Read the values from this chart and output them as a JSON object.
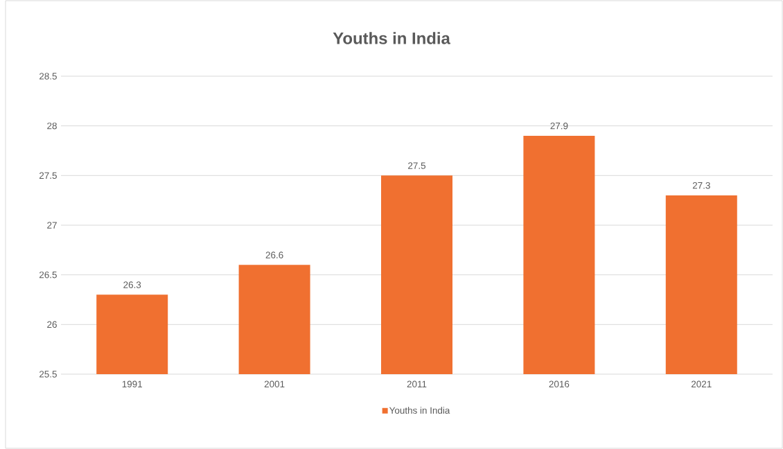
{
  "chart_data": {
    "type": "bar",
    "title": "Youths in India",
    "categories": [
      "1991",
      "2001",
      "2011",
      "2016",
      "2021"
    ],
    "series": [
      {
        "name": "Youths in India",
        "color": "#f07030",
        "values": [
          26.3,
          26.6,
          27.5,
          27.9,
          27.3
        ]
      }
    ],
    "ylim": [
      25.5,
      28.5
    ],
    "yticks": [
      25.5,
      26,
      26.5,
      27,
      27.5,
      28,
      28.5
    ],
    "grid": "y",
    "legend": "bottom",
    "data_labels": true
  }
}
